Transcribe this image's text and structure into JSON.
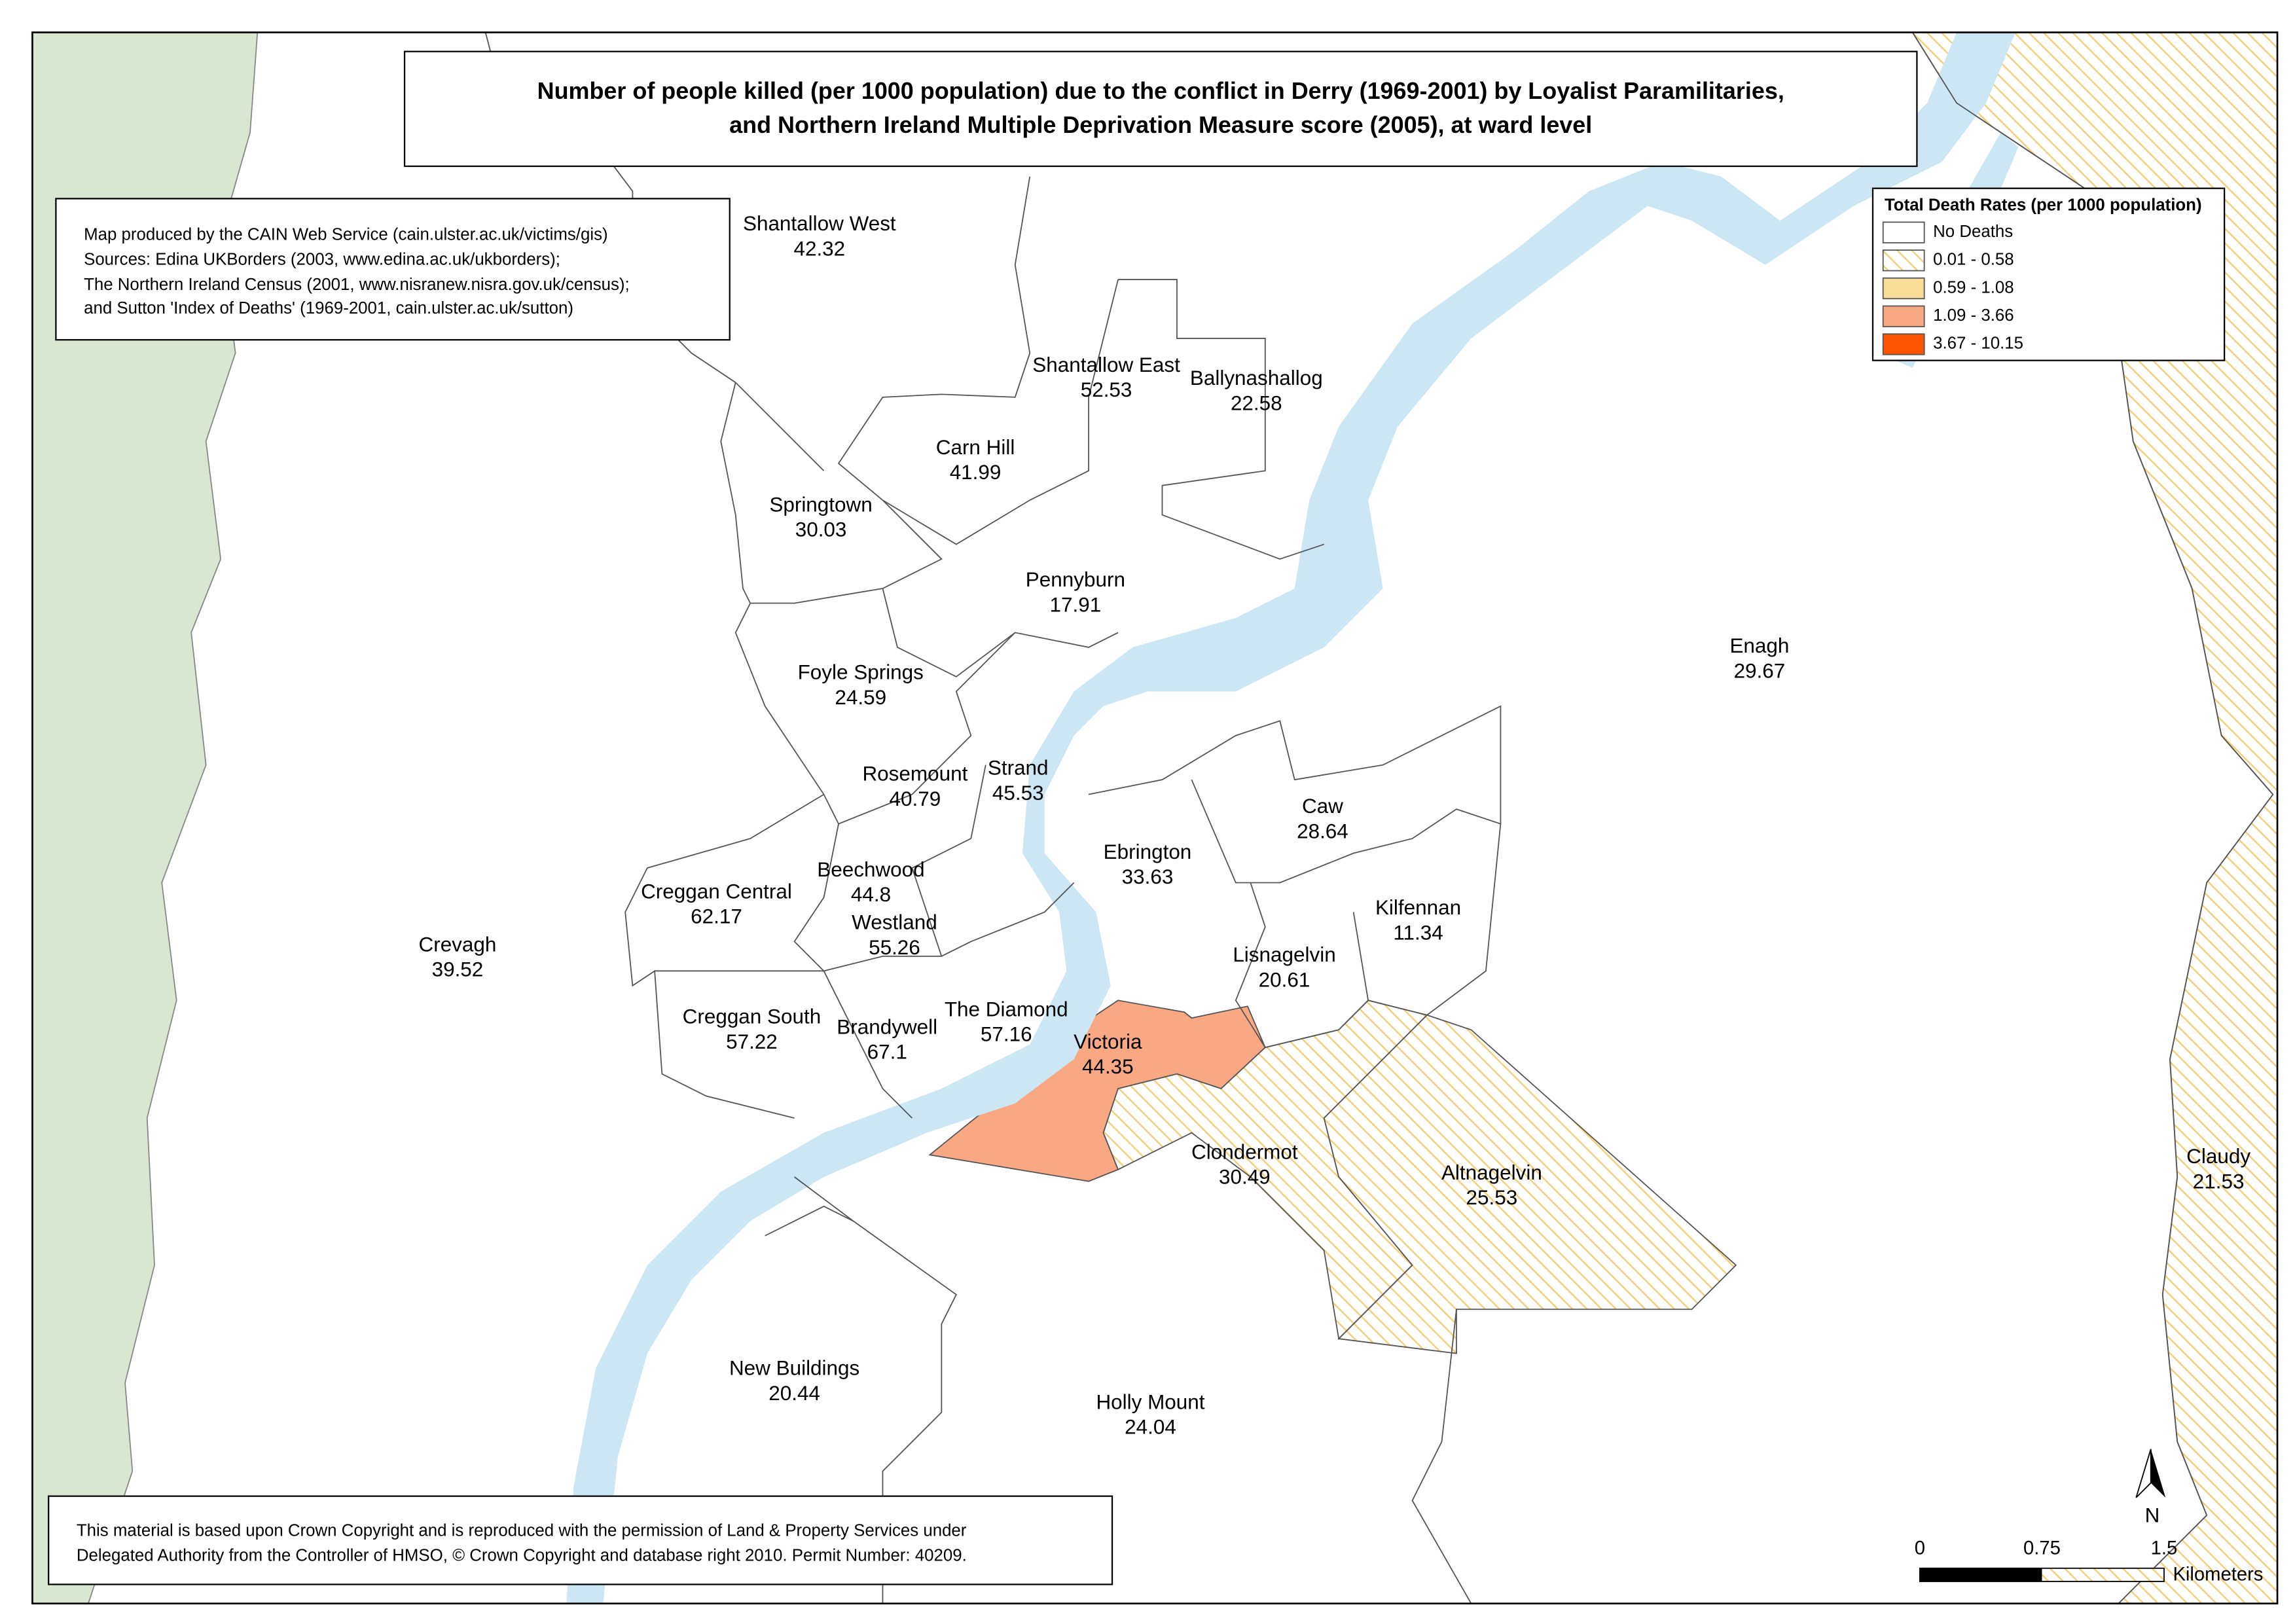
{
  "title": [
    "Number of people killed (per 1000 population) due to the conflict in Derry (1969-2001) by Loyalist Paramilitaries,",
    "and Northern Ireland Multiple Deprivation Measure score (2005), at ward level"
  ],
  "sources": [
    "Map produced by the CAIN Web Service (cain.ulster.ac.uk/victims/gis)",
    "Sources: Edina UKBorders (2003, www.edina.ac.uk/ukborders);",
    "The Northern Ireland Census (2001, www.nisranew.nisra.gov.uk/census);",
    "and Sutton 'Index of Deaths' (1969-2001, cain.ulster.ac.uk/sutton)"
  ],
  "legend": {
    "title": "Total Death Rates (per 1000 population)",
    "entries": [
      {
        "label": "No Deaths",
        "color": "#ffffff",
        "hatched": false
      },
      {
        "label": "0.01 - 0.58",
        "color": "#f2cf7e",
        "hatched": true
      },
      {
        "label": "0.59 - 1.08",
        "color": "#fbdc98",
        "hatched": false
      },
      {
        "label": "1.09 - 3.66",
        "color": "#f8a882",
        "hatched": false
      },
      {
        "label": "3.67 - 10.15",
        "color": "#ff5500",
        "hatched": false
      }
    ]
  },
  "wards": [
    {
      "name": "Shantallow West",
      "score": 42.32,
      "color": "#ffffff",
      "hatched": false
    },
    {
      "name": "Shantallow East",
      "score": 52.53,
      "color": "#ffffff",
      "hatched": false
    },
    {
      "name": "Ballynashallog",
      "score": 22.58,
      "color": "#ffffff",
      "hatched": false
    },
    {
      "name": "Carn Hill",
      "score": 41.99,
      "color": "#ffffff",
      "hatched": false
    },
    {
      "name": "Springtown",
      "score": 30.03,
      "color": "#ffffff",
      "hatched": false
    },
    {
      "name": "Pennyburn",
      "score": 17.91,
      "color": "#ffffff",
      "hatched": false
    },
    {
      "name": "Foyle Springs",
      "score": 24.59,
      "color": "#ffffff",
      "hatched": false
    },
    {
      "name": "Rosemount",
      "score": 40.79,
      "color": "#ffffff",
      "hatched": false
    },
    {
      "name": "Strand",
      "score": 45.53,
      "color": "#ffffff",
      "hatched": false
    },
    {
      "name": "Ebrington",
      "score": 33.63,
      "color": "#ffffff",
      "hatched": false
    },
    {
      "name": "Caw",
      "score": 28.64,
      "color": "#ffffff",
      "hatched": false
    },
    {
      "name": "Kilfennan",
      "score": 11.34,
      "color": "#ffffff",
      "hatched": false
    },
    {
      "name": "Creggan Central",
      "score": 62.17,
      "color": "#ffffff",
      "hatched": false
    },
    {
      "name": "Beechwood",
      "score": 44.8,
      "color": "#ffffff",
      "hatched": false
    },
    {
      "name": "Westland",
      "score": 55.26,
      "color": "#ffffff",
      "hatched": false
    },
    {
      "name": "Lisnagelvin",
      "score": 20.61,
      "color": "#ffffff",
      "hatched": false
    },
    {
      "name": "Crevagh",
      "score": 39.52,
      "color": "#ffffff",
      "hatched": false
    },
    {
      "name": "Creggan South",
      "score": 57.22,
      "color": "#ffffff",
      "hatched": false
    },
    {
      "name": "Brandywell",
      "score": 67.1,
      "color": "#ffffff",
      "hatched": false
    },
    {
      "name": "The Diamond",
      "score": 57.16,
      "color": "#ffffff",
      "hatched": false
    },
    {
      "name": "Victoria",
      "score": 44.35,
      "color": "#f8a882",
      "hatched": false
    },
    {
      "name": "Clondermot",
      "score": 30.49,
      "color": "#f2cf7e",
      "hatched": true
    },
    {
      "name": "Altnagelvin",
      "score": 25.53,
      "color": "#f2cf7e",
      "hatched": true
    },
    {
      "name": "Claudy",
      "score": 21.53,
      "color": "#f2cf7e",
      "hatched": true
    },
    {
      "name": "Enagh",
      "score": 29.67,
      "color": "#ffffff",
      "hatched": false
    },
    {
      "name": "New Buildings",
      "score": 20.44,
      "color": "#ffffff",
      "hatched": false
    },
    {
      "name": "Holly Mount",
      "score": 24.04,
      "color": "#ffffff",
      "hatched": false
    }
  ],
  "scale": {
    "ticks": [
      0,
      0.75,
      1.5
    ],
    "unit": "Kilometers"
  },
  "north": "N",
  "copyright": [
    "This material is based upon Crown Copyright and is reproduced with the permission of Land & Property Services under",
    "Delegated Authority from the Controller of HMSO, © Crown Copyright and database right 2010. Permit Number: 40209."
  ]
}
